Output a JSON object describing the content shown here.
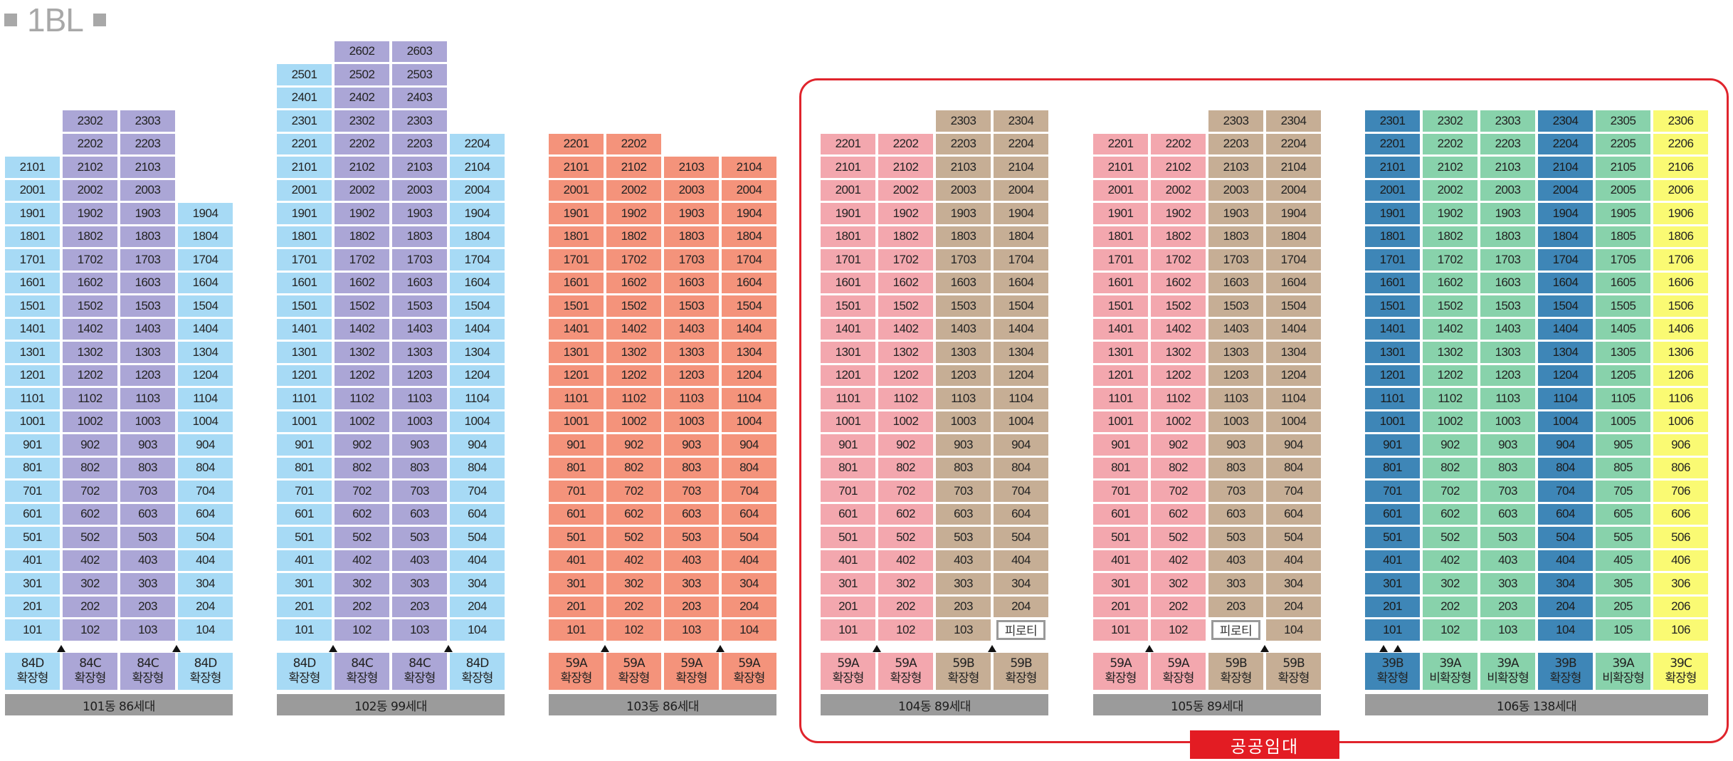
{
  "title": "1BL",
  "colors": {
    "light_blue": "#a7daf5",
    "lavender": "#aba6d6",
    "salmon": "#f4937b",
    "pink": "#f3a7ae",
    "tan": "#c6ae95",
    "dark_blue": "#3e86b7",
    "mint": "#88d2ab",
    "yellow": "#fafa73",
    "label_bar": "#9b9b9b",
    "public_red": "#e31c23"
  },
  "public_label": "공공임대",
  "piloti_label": "피로티",
  "buildings": [
    {
      "name": "101동",
      "count": "86세대",
      "label": "101동  86세대",
      "columns": [
        {
          "line": 1,
          "top_floor": 21,
          "color": "light_blue",
          "type": [
            "84D",
            "확장형"
          ]
        },
        {
          "line": 2,
          "top_floor": 23,
          "color": "lavender",
          "type": [
            "84C",
            "확장형"
          ]
        },
        {
          "line": 3,
          "top_floor": 23,
          "color": "lavender",
          "type": [
            "84C",
            "확장형"
          ]
        },
        {
          "line": 4,
          "top_floor": 19,
          "color": "light_blue",
          "type": [
            "84D",
            "확장형"
          ]
        }
      ],
      "entrances": [
        1,
        3
      ]
    },
    {
      "name": "102동",
      "count": "99세대",
      "label": "102동  99세대",
      "columns": [
        {
          "line": 1,
          "top_floor": 25,
          "color": "light_blue",
          "type": [
            "84D",
            "확장형"
          ]
        },
        {
          "line": 2,
          "top_floor": 26,
          "color": "lavender",
          "type": [
            "84C",
            "확장형"
          ]
        },
        {
          "line": 3,
          "top_floor": 26,
          "color": "lavender",
          "type": [
            "84C",
            "확장형"
          ]
        },
        {
          "line": 4,
          "top_floor": 22,
          "color": "light_blue",
          "type": [
            "84D",
            "확장형"
          ]
        }
      ],
      "entrances": [
        1,
        3
      ]
    },
    {
      "name": "103동",
      "count": "86세대",
      "label": "103동  86세대",
      "columns": [
        {
          "line": 1,
          "top_floor": 22,
          "color": "salmon",
          "type": [
            "59A",
            "확장형"
          ]
        },
        {
          "line": 2,
          "top_floor": 22,
          "color": "salmon",
          "type": [
            "59A",
            "확장형"
          ]
        },
        {
          "line": 3,
          "top_floor": 21,
          "color": "salmon",
          "type": [
            "59A",
            "확장형"
          ]
        },
        {
          "line": 4,
          "top_floor": 21,
          "color": "salmon",
          "type": [
            "59A",
            "확장형"
          ]
        }
      ],
      "entrances": [
        1,
        3
      ]
    },
    {
      "name": "104동",
      "count": "89세대",
      "label": "104동  89세대",
      "columns": [
        {
          "line": 1,
          "top_floor": 22,
          "color": "pink",
          "type": [
            "59A",
            "확장형"
          ]
        },
        {
          "line": 2,
          "top_floor": 22,
          "color": "pink",
          "type": [
            "59A",
            "확장형"
          ]
        },
        {
          "line": 3,
          "top_floor": 23,
          "color": "tan",
          "type": [
            "59B",
            "확장형"
          ]
        },
        {
          "line": 4,
          "top_floor": 23,
          "color": "tan",
          "type": [
            "59B",
            "확장형"
          ],
          "piloti_floor": 1
        }
      ],
      "entrances": [
        1,
        3
      ]
    },
    {
      "name": "105동",
      "count": "89세대",
      "label": "105동  89세대",
      "columns": [
        {
          "line": 1,
          "top_floor": 22,
          "color": "pink",
          "type": [
            "59A",
            "확장형"
          ]
        },
        {
          "line": 2,
          "top_floor": 22,
          "color": "pink",
          "type": [
            "59A",
            "확장형"
          ]
        },
        {
          "line": 3,
          "top_floor": 23,
          "color": "tan",
          "type": [
            "59B",
            "확장형"
          ],
          "piloti_floor": 1
        },
        {
          "line": 4,
          "top_floor": 23,
          "color": "tan",
          "type": [
            "59B",
            "확장형"
          ]
        }
      ],
      "entrances": [
        1,
        3
      ]
    },
    {
      "name": "106동",
      "count": "138세대",
      "label": "106동  138세대",
      "columns": [
        {
          "line": 1,
          "top_floor": 23,
          "color": "dark_blue",
          "type": [
            "39B",
            "확장형"
          ]
        },
        {
          "line": 2,
          "top_floor": 23,
          "color": "mint",
          "type": [
            "39A",
            "비확장형"
          ]
        },
        {
          "line": 3,
          "top_floor": 23,
          "color": "mint",
          "type": [
            "39A",
            "비확장형"
          ]
        },
        {
          "line": 4,
          "top_floor": 23,
          "color": "dark_blue",
          "type": [
            "39B",
            "확장형"
          ]
        },
        {
          "line": 5,
          "top_floor": 23,
          "color": "mint",
          "type": [
            "39A",
            "비확장형"
          ]
        },
        {
          "line": 6,
          "top_floor": 23,
          "color": "yellow",
          "type": [
            "39C",
            "확장형"
          ]
        }
      ],
      "entrances": [
        0.15,
        0.4
      ]
    }
  ]
}
